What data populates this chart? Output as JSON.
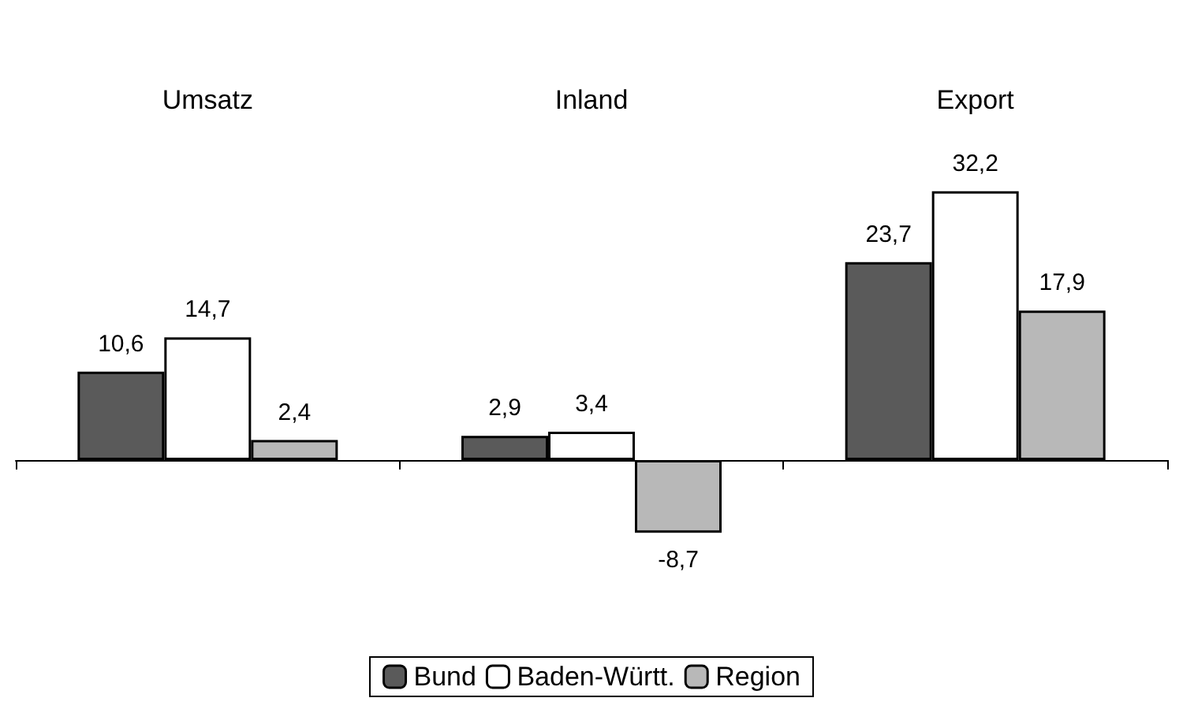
{
  "chart_data": {
    "type": "bar",
    "categories": [
      "Umsatz",
      "Inland",
      "Export"
    ],
    "series": [
      {
        "name": "Bund",
        "color": "#5a5a5a",
        "values": [
          10.6,
          2.9,
          23.7
        ],
        "value_labels": [
          "10,6",
          "2,9",
          "23,7"
        ]
      },
      {
        "name": "Baden-Württ.",
        "color": "#ffffff",
        "values": [
          14.7,
          3.4,
          32.2
        ],
        "value_labels": [
          "14,7",
          "3,4",
          "32,2"
        ]
      },
      {
        "name": "Region",
        "color": "#b8b8b8",
        "values": [
          2.4,
          -8.7,
          17.9
        ],
        "value_labels": [
          "2,4",
          "-8,7",
          "17,9"
        ]
      }
    ],
    "legend": "bottom",
    "grid": false
  }
}
